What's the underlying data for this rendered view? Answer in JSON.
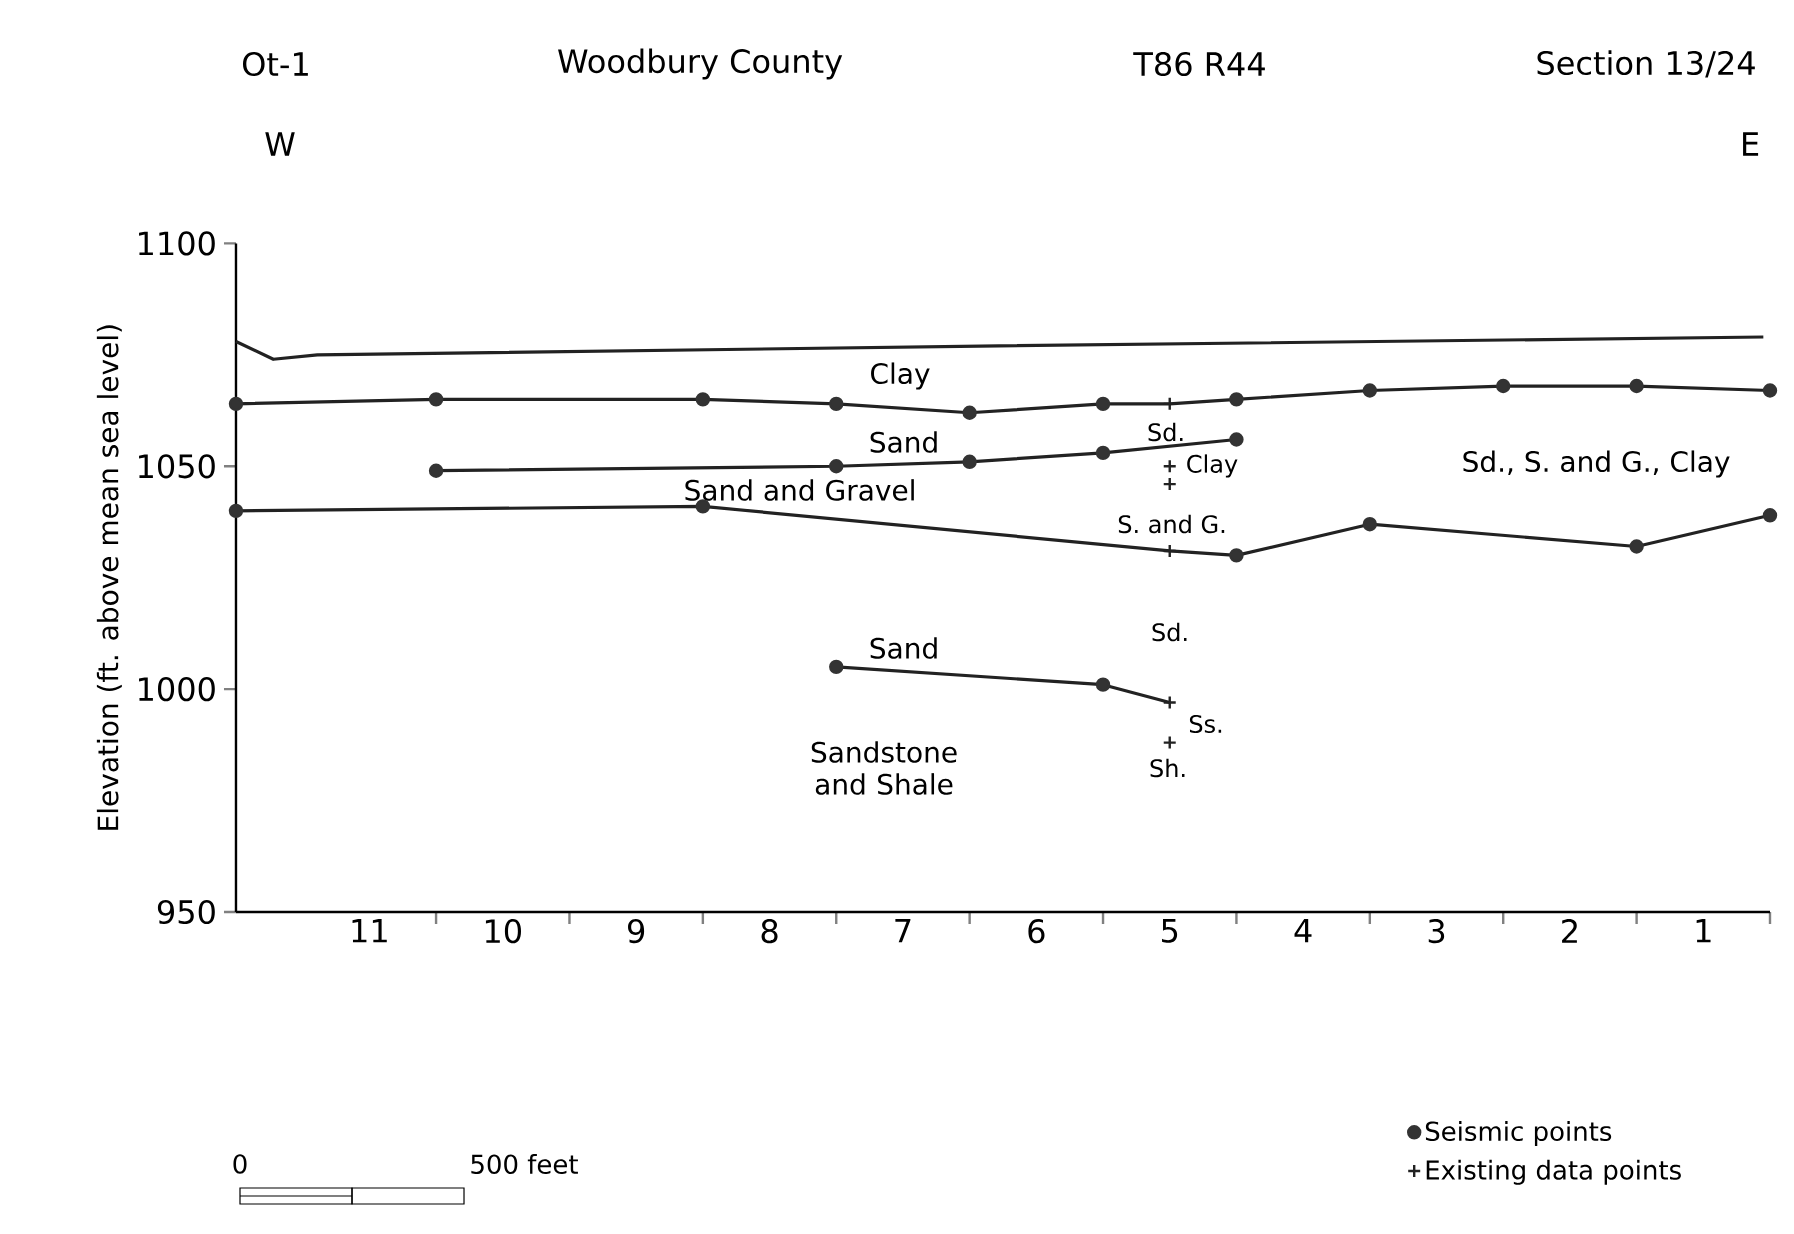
{
  "chart_data": {
    "type": "line",
    "title": "Ot-1",
    "ylabel": "Elevation (ft. above mean sea level)",
    "xlim": [
      12,
      0.5
    ],
    "xticks": [
      {
        "value": 10.5,
        "label": null
      },
      {
        "value": 9.5,
        "label": null
      },
      {
        "value": 8.5,
        "label": null
      },
      {
        "value": 7.5,
        "label": null
      },
      {
        "value": 6.5,
        "label": null
      },
      {
        "value": 5.5,
        "label": null
      },
      {
        "value": 4.5,
        "label": null
      },
      {
        "value": 3.5,
        "label": null
      },
      {
        "value": 2.5,
        "label": null
      },
      {
        "value": 1.5,
        "label": null
      },
      {
        "value": 0.5,
        "label": null
      },
      11,
      10,
      9,
      8,
      7,
      6,
      5,
      4,
      3,
      2,
      1
    ],
    "ylim": [
      950,
      1100
    ],
    "yticks": [
      950,
      1000,
      1050,
      1100
    ],
    "legend": "bottom right",
    "series": [
      {
        "marker": "none",
        "color": "#222222",
        "x": [
          12,
          11.72,
          11.39,
          6.28,
          0.55
        ],
        "values": [
          1078,
          1074,
          1075,
          1077,
          1079
        ]
      },
      {
        "marker": "none",
        "color": "#222222",
        "x": [
          12,
          10.5,
          8.5,
          7.5,
          6.5,
          5.5,
          5,
          4.5,
          3.5,
          2.5,
          1.5,
          0.5
        ],
        "values": [
          1064,
          1065,
          1065,
          1064,
          1062,
          1064,
          1064,
          1065,
          1067,
          1068,
          1068,
          1067
        ]
      },
      {
        "marker": "none",
        "color": "#222222",
        "x": [
          10.5,
          7.5,
          6.5,
          5.5,
          4.5
        ],
        "values": [
          1049,
          1050,
          1051,
          1053,
          1056
        ]
      },
      {
        "marker": "none",
        "color": "#222222",
        "x": [
          12,
          8.5,
          5,
          4.5,
          3.5,
          1.5,
          0.5
        ],
        "values": [
          1040,
          1041,
          1031,
          1030,
          1037,
          1032,
          1039
        ]
      },
      {
        "marker": "none",
        "color": "#222222",
        "x": [
          7.5,
          5.5,
          5
        ],
        "values": [
          1005,
          1001,
          997
        ]
      },
      {
        "type": "scatter",
        "marker": "circle",
        "name": "Seismic points",
        "color": "#333333",
        "x": [
          12,
          10.5,
          8.5,
          7.5,
          6.5,
          5.5,
          4.5,
          3.5,
          2.5,
          1.5,
          0.5,
          10.5,
          7.5,
          6.5,
          5.5,
          4.5,
          12,
          8.5,
          4.5,
          3.5,
          1.5,
          0.5,
          7.5,
          5.5
        ],
        "values": [
          1064,
          1065,
          1065,
          1064,
          1062,
          1064,
          1065,
          1067,
          1068,
          1068,
          1067,
          1049,
          1050,
          1051,
          1053,
          1056,
          1040,
          1041,
          1030,
          1037,
          1032,
          1039,
          1005,
          1001
        ]
      },
      {
        "type": "scatter",
        "marker": "cross",
        "name": "Existing data points",
        "color": "#222222",
        "x": [
          5,
          5,
          5,
          5,
          5,
          5
        ],
        "values": [
          1064,
          1050,
          1046,
          1031,
          997,
          988
        ]
      }
    ],
    "annotations": [
      "Woodbury County",
      "T86 R44",
      "Section 13/24",
      "W",
      "E",
      "0",
      "500 feet",
      "Clay",
      "Sand",
      "Sand and Gravel",
      "Sand",
      "Sandstone and Shale",
      "Sd.",
      "Clay",
      "S. and G.",
      "Sd.",
      "Ss.",
      "Sh.",
      "Sd., S. and G., Clay"
    ]
  }
}
